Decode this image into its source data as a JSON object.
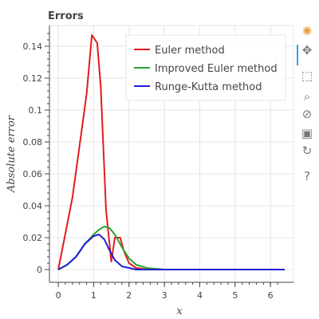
{
  "chart_data": {
    "type": "line",
    "title": "Errors",
    "xlabel": "x",
    "ylabel": "Absolute error",
    "xlim": [
      -0.25,
      6.65
    ],
    "ylim": [
      -0.008,
      0.153
    ],
    "x_ticks": [
      0,
      1,
      2,
      3,
      4,
      5,
      6
    ],
    "x_tick_labels": [
      "0",
      "1",
      "2",
      "3",
      "4",
      "5",
      "6"
    ],
    "y_ticks": [
      0,
      0.02,
      0.04,
      0.06,
      0.08,
      0.1,
      0.12,
      0.14
    ],
    "y_tick_labels": [
      "0",
      "0.02",
      "0.04",
      "0.06",
      "0.08",
      "0.1",
      "0.12",
      "0.14"
    ],
    "grid": true,
    "legend_position": "top-right",
    "series": [
      {
        "name": "Euler method",
        "color": "#e41a1c",
        "x": [
          0,
          0.4,
          0.8,
          0.95,
          1.1,
          1.2,
          1.35,
          1.5,
          1.6,
          1.75,
          1.85,
          2.0,
          2.2,
          2.5,
          3.0,
          4.0,
          5.0,
          6.4
        ],
        "y": [
          0,
          0.045,
          0.11,
          0.147,
          0.142,
          0.115,
          0.037,
          0.005,
          0.02,
          0.02,
          0.012,
          0.004,
          0.001,
          0,
          0,
          0,
          0,
          0
        ]
      },
      {
        "name": "Improved Euler method",
        "color": "#2ca02c",
        "x": [
          0,
          0.25,
          0.5,
          0.75,
          1.0,
          1.15,
          1.3,
          1.45,
          1.6,
          1.8,
          2.0,
          2.2,
          2.5,
          3.0,
          4.0,
          5.0,
          6.4
        ],
        "y": [
          0,
          0.003,
          0.008,
          0.016,
          0.022,
          0.025,
          0.027,
          0.026,
          0.022,
          0.014,
          0.007,
          0.003,
          0.001,
          0,
          0,
          0,
          0
        ]
      },
      {
        "name": "Runge-Kutta method",
        "color": "#1f1fd6",
        "x": [
          0,
          0.25,
          0.5,
          0.75,
          1.0,
          1.15,
          1.3,
          1.45,
          1.6,
          1.8,
          2.0,
          2.2,
          2.5,
          3.0,
          4.0,
          5.0,
          6.4
        ],
        "y": [
          0,
          0.003,
          0.008,
          0.016,
          0.021,
          0.022,
          0.019,
          0.012,
          0.006,
          0.002,
          0.001,
          0,
          0,
          0,
          0,
          0,
          0
        ]
      }
    ]
  },
  "toolbar": {
    "tools": [
      {
        "name": "bokeh-logo-icon",
        "glyph": "✺",
        "color": "#e8a33d"
      },
      {
        "name": "pan-icon",
        "glyph": "✥",
        "color": "#777777"
      },
      {
        "name": "box-zoom-icon",
        "glyph": "⬚",
        "color": "#777777"
      },
      {
        "name": "wheel-zoom-icon",
        "glyph": "⌕",
        "color": "#777777"
      },
      {
        "name": "lasso-select-icon",
        "glyph": "⊘",
        "color": "#777777"
      },
      {
        "name": "save-icon",
        "glyph": "▣",
        "color": "#777777"
      },
      {
        "name": "reset-icon",
        "glyph": "↻",
        "color": "#777777"
      },
      {
        "name": "help-icon",
        "glyph": "?",
        "color": "#777777"
      }
    ]
  }
}
